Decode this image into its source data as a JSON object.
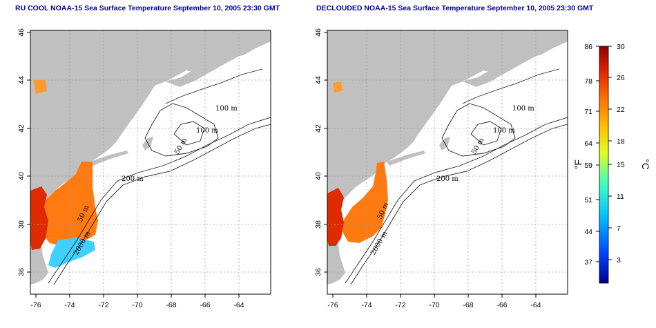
{
  "titles": {
    "left": "RU COOL NOAA-15 Sea Surface Temperature September 10, 2005 23:30 GMT",
    "right": "DECLOUDED NOAA-15 Sea Surface Temperature September 10, 2005 23:30 GMT"
  },
  "axes": {
    "lon_ticks": [
      "-76",
      "-74",
      "-72",
      "-70",
      "-68",
      "-66",
      "-64"
    ],
    "lat_ticks": [
      "46",
      "44",
      "42",
      "40",
      "38",
      "36"
    ]
  },
  "contour_labels": {
    "left": [
      "100 m",
      "100 m",
      "50 m",
      "200 m",
      "50 m",
      "2000 m"
    ],
    "right": [
      "100 m",
      "100 m",
      "50 m",
      "200 m",
      "50 m",
      "2000 m"
    ]
  },
  "colorbar": {
    "fahrenheit_ticks": [
      "86",
      "78",
      "71",
      "64",
      "59",
      "51",
      "44",
      "37"
    ],
    "celsius_ticks": [
      "30",
      "26",
      "22",
      "18",
      "15",
      "11",
      "7",
      "3"
    ],
    "unit_f": "°F",
    "unit_c": "°C"
  },
  "colors": {
    "land": "#c0c0c0",
    "water": "#ffffff",
    "warm": "#ff6a00",
    "hot": "#e02000",
    "cold": "#00c0ff",
    "title": "#0000a0"
  }
}
